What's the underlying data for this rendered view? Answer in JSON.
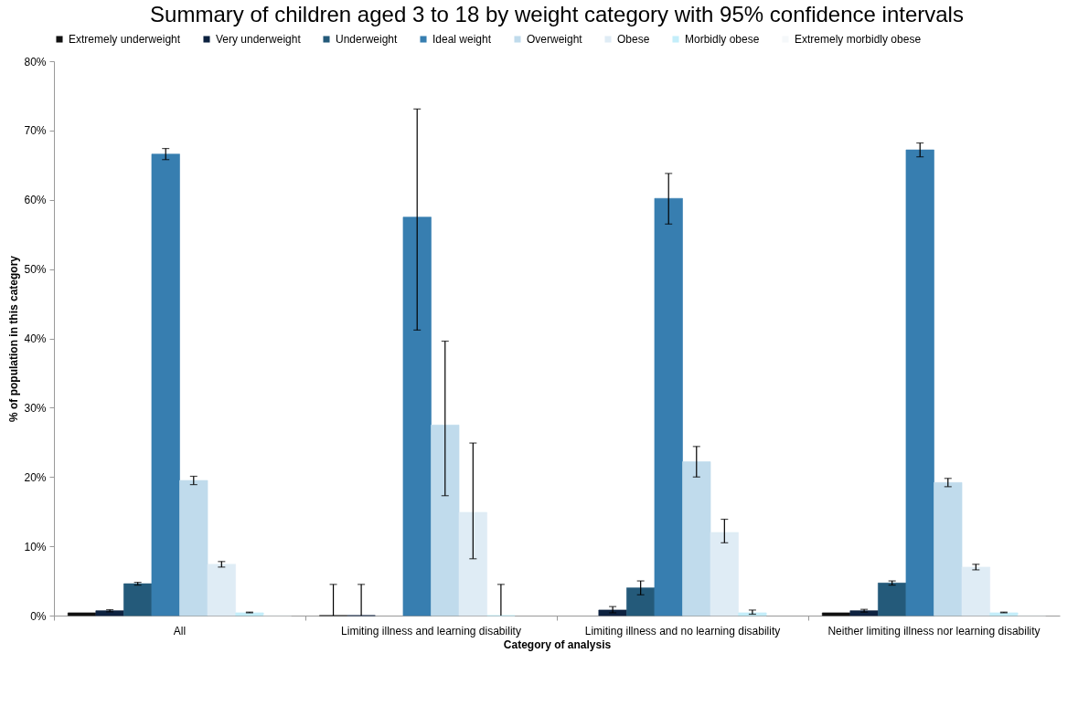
{
  "chart_data": {
    "type": "bar",
    "title": "Summary of children aged 3 to 18 by weight category with 95% confidence intervals",
    "xlabel": "Category of analysis",
    "ylabel": "% of population in this category",
    "categories": [
      "All",
      "Limiting illness and learning disability",
      "Limiting illness and no learning disability",
      "Neither limiting illness nor learning disability"
    ],
    "series": [
      {
        "name": "Extremely underweight",
        "color": "#111111",
        "values": [
          0.4,
          0,
          null,
          0.4
        ],
        "errors": [
          null,
          [
            0,
            4.5
          ],
          null,
          null
        ]
      },
      {
        "name": "Very underweight",
        "color": "#0d2240",
        "values": [
          0.7,
          0,
          0.8,
          0.7
        ],
        "errors": [
          [
            0.55,
            0.85
          ],
          [
            0,
            4.5
          ],
          [
            0.4,
            1.3
          ],
          [
            0.5,
            0.9
          ]
        ]
      },
      {
        "name": "Underweight",
        "color": "#245a7a",
        "values": [
          4.6,
          null,
          4.0,
          4.7
        ],
        "errors": [
          [
            4.4,
            4.8
          ],
          null,
          [
            3.0,
            5.0
          ],
          [
            4.4,
            5.0
          ]
        ]
      },
      {
        "name": "Ideal weight",
        "color": "#377eb0",
        "values": [
          66.6,
          57.5,
          60.2,
          67.2
        ],
        "errors": [
          [
            65.8,
            67.4
          ],
          [
            41.2,
            73.1
          ],
          [
            56.5,
            63.8
          ],
          [
            66.2,
            68.2
          ]
        ]
      },
      {
        "name": "Overweight",
        "color": "#c0dbec",
        "values": [
          19.5,
          27.5,
          22.2,
          19.2
        ],
        "errors": [
          [
            18.9,
            20.1
          ],
          [
            17.3,
            39.6
          ],
          [
            20.0,
            24.4
          ],
          [
            18.6,
            19.8
          ]
        ]
      },
      {
        "name": "Obese",
        "color": "#dfecf5",
        "values": [
          7.4,
          14.9,
          12.0,
          7.0
        ],
        "errors": [
          [
            7.0,
            7.8
          ],
          [
            8.2,
            24.9
          ],
          [
            10.5,
            13.9
          ],
          [
            6.6,
            7.4
          ]
        ]
      },
      {
        "name": "Morbidly obese",
        "color": "#c4eefa",
        "values": [
          0.4,
          0,
          0.4,
          0.4
        ],
        "errors": [
          [
            0.4,
            0.5
          ],
          [
            0,
            4.5
          ],
          [
            0.2,
            0.8
          ],
          [
            0.4,
            0.5
          ]
        ]
      },
      {
        "name": "Extremely morbidly obese",
        "color": "#f5f8fa",
        "values": [
          0.1,
          null,
          null,
          0.1
        ]
      }
    ],
    "ylim": [
      0,
      80
    ],
    "yticks": [
      {
        "value": 0,
        "label": "0%"
      },
      {
        "value": 10,
        "label": "10%"
      },
      {
        "value": 20,
        "label": "20%"
      },
      {
        "value": 30,
        "label": "30%"
      },
      {
        "value": 40,
        "label": "40%"
      },
      {
        "value": 50,
        "label": "50%"
      },
      {
        "value": 60,
        "label": "60%"
      },
      {
        "value": 70,
        "label": "70%"
      },
      {
        "value": 80,
        "label": "80%"
      }
    ],
    "grid": false,
    "legend": "top"
  }
}
